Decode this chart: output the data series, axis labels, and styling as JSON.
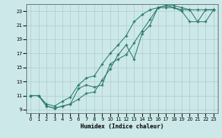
{
  "xlabel": "Humidex (Indice chaleur)",
  "bg_color": "#cce8e8",
  "grid_color": "#b0d0d0",
  "line_color": "#2a7a6a",
  "xlim": [
    -0.5,
    23.5
  ],
  "ylim": [
    8.5,
    24
  ],
  "yticks": [
    9,
    11,
    13,
    15,
    17,
    19,
    21,
    23
  ],
  "xticks": [
    0,
    1,
    2,
    3,
    4,
    5,
    6,
    7,
    8,
    9,
    10,
    11,
    12,
    13,
    14,
    15,
    16,
    17,
    18,
    19,
    20,
    21,
    22,
    23
  ],
  "line1_x": [
    0,
    1,
    2,
    3,
    4,
    5,
    6,
    7,
    8,
    9,
    10,
    11,
    12,
    13,
    14,
    15,
    16,
    17,
    18,
    19,
    20,
    21,
    22,
    23
  ],
  "line1_y": [
    11,
    11,
    9.5,
    9.2,
    9.5,
    9.8,
    10.5,
    11.3,
    11.5,
    13.2,
    14.8,
    16.8,
    18.2,
    16.2,
    19.8,
    21.0,
    23.5,
    23.8,
    23.8,
    23.5,
    23.2,
    23.2,
    23.2,
    23.2
  ],
  "line2_x": [
    0,
    1,
    2,
    3,
    4,
    5,
    6,
    7,
    8,
    9,
    10,
    11,
    12,
    13,
    14,
    15,
    16,
    17,
    18,
    19,
    20,
    21,
    22,
    23
  ],
  "line2_y": [
    11,
    11,
    9.5,
    9.2,
    9.5,
    9.8,
    12.0,
    12.5,
    12.2,
    12.5,
    15.5,
    16.2,
    16.8,
    18.5,
    20.2,
    21.8,
    23.5,
    23.8,
    23.5,
    23.2,
    23.2,
    21.5,
    23.2,
    23.2
  ],
  "line3_x": [
    0,
    1,
    2,
    3,
    4,
    5,
    6,
    7,
    8,
    9,
    10,
    11,
    12,
    13,
    14,
    15,
    16,
    17,
    18,
    19,
    20,
    21,
    22,
    23
  ],
  "line3_y": [
    11,
    11,
    9.8,
    9.5,
    10.2,
    10.8,
    12.5,
    13.5,
    13.8,
    15.5,
    17.0,
    18.2,
    19.5,
    21.5,
    22.5,
    23.2,
    23.5,
    23.5,
    23.5,
    23.0,
    21.5,
    21.5,
    21.5,
    23.2
  ]
}
